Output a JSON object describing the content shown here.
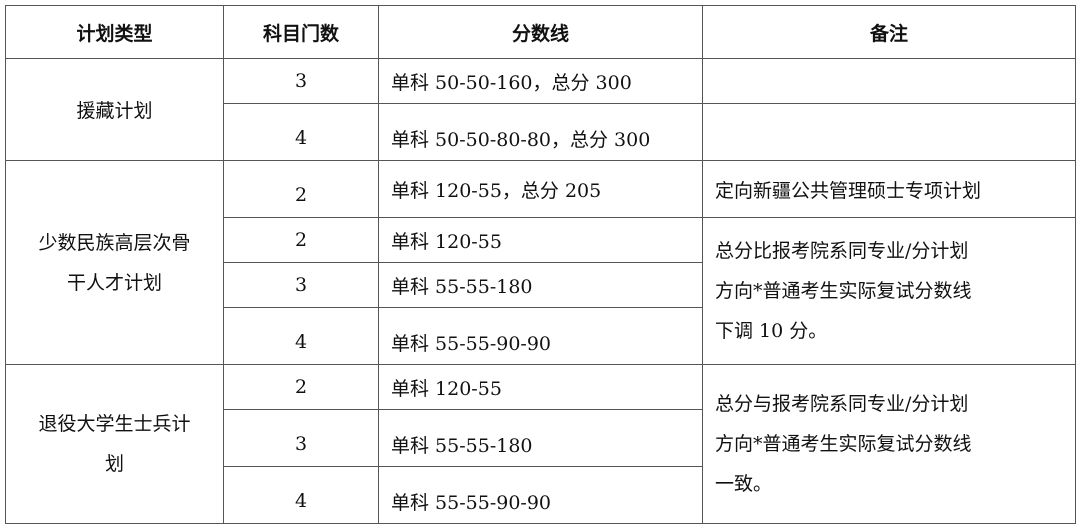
{
  "headers": [
    "计划类型",
    "科目门数",
    "分数线",
    "备注"
  ],
  "groups": [
    {
      "plan": [
        "援藏计划"
      ],
      "rows": [
        {
          "subjects": "3",
          "score": "单科 50-50-160，总分 300",
          "note": ""
        },
        {
          "subjects": "4",
          "score": "单科 50-50-80-80，总分 300",
          "note": ""
        }
      ]
    },
    {
      "plan": [
        "少数民族高层次骨",
        "干人才计划"
      ],
      "rows": [
        {
          "subjects": "2",
          "score": "单科 120-55，总分 205",
          "note": "定向新疆公共管理硕士专项计划"
        },
        {
          "subjects": "2",
          "score": "单科 120-55"
        },
        {
          "subjects": "3",
          "score": "单科 55-55-180"
        },
        {
          "subjects": "4",
          "score": "单科 55-55-90-90"
        }
      ],
      "note": [
        "总分比报考院系同专业/分计划",
        "方向*普通考生实际复试分数线",
        "下调 10 分。"
      ]
    },
    {
      "plan": [
        "退役大学生士兵计",
        "划"
      ],
      "rows": [
        {
          "subjects": "2",
          "score": "单科 120-55"
        },
        {
          "subjects": "3",
          "score": "单科 55-55-180"
        },
        {
          "subjects": "4",
          "score": "单科 55-55-90-90"
        }
      ],
      "note": [
        "总分与报考院系同专业/分计划",
        "方向*普通考生实际复试分数线",
        "一致。"
      ]
    }
  ]
}
